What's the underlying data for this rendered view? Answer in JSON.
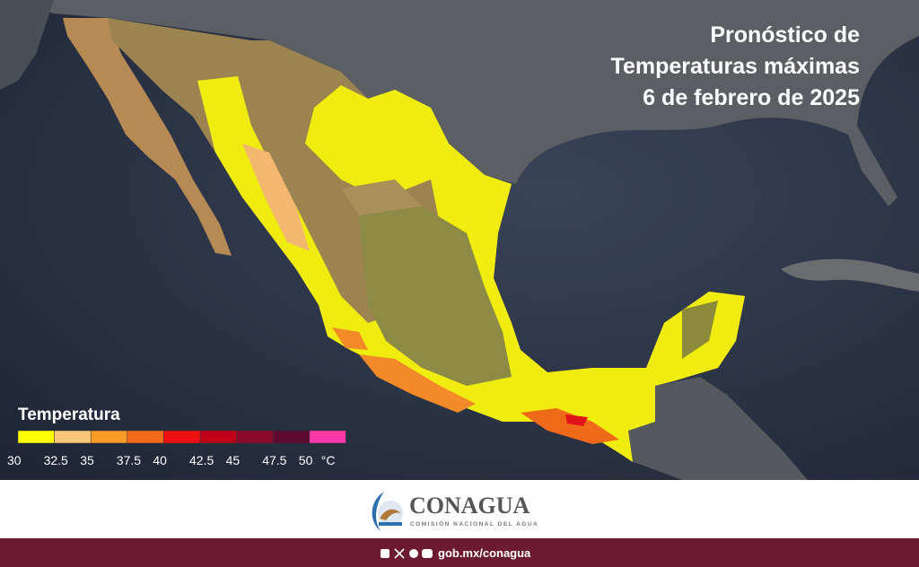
{
  "header": {
    "title_lines": [
      "Pronóstico de",
      "Temperaturas máximas",
      "6 de febrero de 2025"
    ]
  },
  "legend": {
    "title": "Temperatura",
    "unit": "°C",
    "ticks": [
      30,
      32.5,
      35,
      37.5,
      40,
      42.5,
      45,
      47.5,
      50
    ],
    "colors": [
      "#ffff00",
      "#f9c77a",
      "#f79a28",
      "#f06a18",
      "#ee1010",
      "#c00018",
      "#8a0a2a",
      "#5e0a2e",
      "#ff3aa8"
    ]
  },
  "footer": {
    "brand": "CONAGUA",
    "brand_subtitle": "COMISIÓN NACIONAL DEL AGUA",
    "link": "gob.mx/conagua"
  }
}
